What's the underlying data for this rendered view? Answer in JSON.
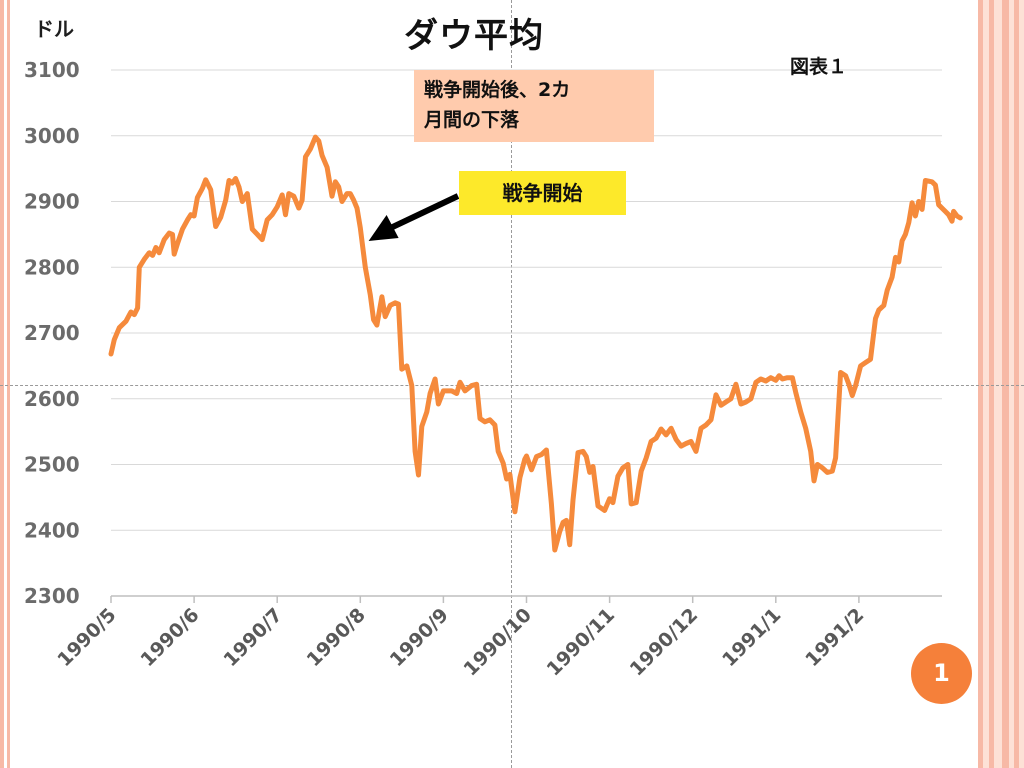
{
  "title": "ダウ平均",
  "unit_label": "ドル",
  "figure_label": "図表１",
  "annotations": {
    "note_line1": "戦争開始後、2カ",
    "note_line2": "月間の下落",
    "war_start": "戦争開始"
  },
  "page_number": "1",
  "colors": {
    "line": "#f58a3c",
    "note_box": "#ffcbad",
    "start_box": "#fde92a",
    "badge": "#f5803a",
    "accent_stripe": "#f7b9a6"
  },
  "chart_data": {
    "type": "line",
    "title": "ダウ平均",
    "ylabel": "ドル",
    "xlabel": "",
    "ylim": [
      2300,
      3100
    ],
    "xlim": [
      0,
      10
    ],
    "yticks": [
      "2300",
      "2400",
      "2500",
      "2600",
      "2700",
      "2800",
      "2900",
      "3000",
      "3100"
    ],
    "xticks": [
      "1990/5",
      "1990/6",
      "1990/7",
      "1990/8",
      "1990/9",
      "1990/10",
      "1990/11",
      "1990/12",
      "1991/1",
      "1991/2"
    ],
    "grid": "horizontal",
    "annotation_arrow": {
      "label": "戦争開始",
      "x": 3.1,
      "y": 2840
    },
    "series": [
      {
        "points": [
          [
            0.0,
            2668
          ],
          [
            0.04,
            2690
          ],
          [
            0.1,
            2708
          ],
          [
            0.18,
            2718
          ],
          [
            0.24,
            2732
          ],
          [
            0.28,
            2728
          ],
          [
            0.32,
            2738
          ],
          [
            0.34,
            2800
          ],
          [
            0.4,
            2812
          ],
          [
            0.46,
            2822
          ],
          [
            0.5,
            2818
          ],
          [
            0.54,
            2830
          ],
          [
            0.58,
            2822
          ],
          [
            0.64,
            2842
          ],
          [
            0.7,
            2852
          ],
          [
            0.74,
            2850
          ],
          [
            0.76,
            2820
          ],
          [
            0.8,
            2836
          ],
          [
            0.86,
            2858
          ],
          [
            0.92,
            2872
          ],
          [
            0.96,
            2880
          ],
          [
            1.0,
            2878
          ],
          [
            1.04,
            2906
          ],
          [
            1.1,
            2920
          ],
          [
            1.14,
            2933
          ],
          [
            1.2,
            2918
          ],
          [
            1.26,
            2862
          ],
          [
            1.32,
            2876
          ],
          [
            1.38,
            2902
          ],
          [
            1.42,
            2932
          ],
          [
            1.46,
            2928
          ],
          [
            1.5,
            2935
          ],
          [
            1.54,
            2922
          ],
          [
            1.58,
            2900
          ],
          [
            1.64,
            2912
          ],
          [
            1.7,
            2858
          ],
          [
            1.76,
            2850
          ],
          [
            1.82,
            2842
          ],
          [
            1.88,
            2872
          ],
          [
            1.94,
            2880
          ],
          [
            2.0,
            2892
          ],
          [
            2.06,
            2910
          ],
          [
            2.1,
            2880
          ],
          [
            2.14,
            2912
          ],
          [
            2.2,
            2908
          ],
          [
            2.26,
            2890
          ],
          [
            2.3,
            2902
          ],
          [
            2.34,
            2968
          ],
          [
            2.4,
            2980
          ],
          [
            2.46,
            2998
          ],
          [
            2.5,
            2992
          ],
          [
            2.54,
            2970
          ],
          [
            2.6,
            2952
          ],
          [
            2.66,
            2908
          ],
          [
            2.7,
            2930
          ],
          [
            2.74,
            2922
          ],
          [
            2.78,
            2900
          ],
          [
            2.84,
            2912
          ],
          [
            2.88,
            2912
          ],
          [
            2.92,
            2902
          ],
          [
            2.96,
            2890
          ],
          [
            3.0,
            2860
          ],
          [
            3.06,
            2800
          ],
          [
            3.12,
            2758
          ],
          [
            3.16,
            2720
          ],
          [
            3.2,
            2712
          ],
          [
            3.26,
            2755
          ],
          [
            3.3,
            2725
          ],
          [
            3.36,
            2742
          ],
          [
            3.42,
            2746
          ],
          [
            3.46,
            2744
          ],
          [
            3.5,
            2645
          ],
          [
            3.56,
            2650
          ],
          [
            3.62,
            2620
          ],
          [
            3.66,
            2520
          ],
          [
            3.7,
            2484
          ],
          [
            3.74,
            2558
          ],
          [
            3.8,
            2580
          ],
          [
            3.84,
            2608
          ],
          [
            3.9,
            2630
          ],
          [
            3.94,
            2592
          ],
          [
            4.0,
            2612
          ],
          [
            4.1,
            2612
          ],
          [
            4.16,
            2608
          ],
          [
            4.2,
            2625
          ],
          [
            4.26,
            2612
          ],
          [
            4.34,
            2620
          ],
          [
            4.4,
            2622
          ],
          [
            4.44,
            2570
          ],
          [
            4.5,
            2565
          ],
          [
            4.56,
            2568
          ],
          [
            4.62,
            2560
          ],
          [
            4.66,
            2520
          ],
          [
            4.72,
            2502
          ],
          [
            4.76,
            2478
          ],
          [
            4.8,
            2485
          ],
          [
            4.86,
            2428
          ],
          [
            4.92,
            2480
          ],
          [
            4.98,
            2508
          ],
          [
            5.0,
            2513
          ],
          [
            5.06,
            2492
          ],
          [
            5.12,
            2512
          ],
          [
            5.18,
            2515
          ],
          [
            5.24,
            2522
          ],
          [
            5.3,
            2440
          ],
          [
            5.34,
            2370
          ],
          [
            5.4,
            2398
          ],
          [
            5.44,
            2412
          ],
          [
            5.48,
            2415
          ],
          [
            5.52,
            2378
          ],
          [
            5.56,
            2446
          ],
          [
            5.62,
            2518
          ],
          [
            5.68,
            2520
          ],
          [
            5.72,
            2512
          ],
          [
            5.76,
            2488
          ],
          [
            5.8,
            2497
          ],
          [
            5.86,
            2437
          ],
          [
            5.94,
            2430
          ],
          [
            6.0,
            2448
          ],
          [
            6.04,
            2442
          ],
          [
            6.1,
            2482
          ],
          [
            6.16,
            2495
          ],
          [
            6.22,
            2500
          ],
          [
            6.26,
            2440
          ],
          [
            6.32,
            2442
          ],
          [
            6.38,
            2490
          ],
          [
            6.44,
            2510
          ],
          [
            6.5,
            2535
          ],
          [
            6.56,
            2540
          ],
          [
            6.62,
            2554
          ],
          [
            6.68,
            2545
          ],
          [
            6.74,
            2555
          ],
          [
            6.8,
            2538
          ],
          [
            6.86,
            2528
          ],
          [
            6.92,
            2532
          ],
          [
            6.98,
            2535
          ],
          [
            7.04,
            2520
          ],
          [
            7.1,
            2555
          ],
          [
            7.16,
            2560
          ],
          [
            7.22,
            2568
          ],
          [
            7.28,
            2606
          ],
          [
            7.34,
            2590
          ],
          [
            7.4,
            2595
          ],
          [
            7.46,
            2600
          ],
          [
            7.52,
            2622
          ],
          [
            7.58,
            2592
          ],
          [
            7.64,
            2595
          ],
          [
            7.7,
            2600
          ],
          [
            7.76,
            2625
          ],
          [
            7.82,
            2630
          ],
          [
            7.88,
            2627
          ],
          [
            7.94,
            2632
          ],
          [
            8.0,
            2628
          ],
          [
            8.04,
            2635
          ],
          [
            8.08,
            2630
          ],
          [
            8.14,
            2632
          ],
          [
            8.2,
            2632
          ],
          [
            8.24,
            2610
          ],
          [
            8.3,
            2580
          ],
          [
            8.36,
            2555
          ],
          [
            8.42,
            2520
          ],
          [
            8.46,
            2475
          ],
          [
            8.5,
            2500
          ],
          [
            8.56,
            2495
          ],
          [
            8.62,
            2488
          ],
          [
            8.68,
            2490
          ],
          [
            8.72,
            2510
          ],
          [
            8.78,
            2640
          ],
          [
            8.84,
            2635
          ],
          [
            8.88,
            2622
          ],
          [
            8.92,
            2605
          ],
          [
            8.96,
            2620
          ],
          [
            9.02,
            2650
          ],
          [
            9.08,
            2655
          ],
          [
            9.14,
            2660
          ],
          [
            9.2,
            2722
          ],
          [
            9.24,
            2735
          ],
          [
            9.3,
            2742
          ],
          [
            9.34,
            2765
          ],
          [
            9.4,
            2785
          ],
          [
            9.44,
            2815
          ],
          [
            9.48,
            2808
          ],
          [
            9.52,
            2840
          ],
          [
            9.56,
            2850
          ],
          [
            9.6,
            2868
          ],
          [
            9.64,
            2898
          ],
          [
            9.68,
            2878
          ],
          [
            9.72,
            2900
          ],
          [
            9.76,
            2888
          ],
          [
            9.8,
            2932
          ],
          [
            9.88,
            2930
          ],
          [
            9.92,
            2925
          ],
          [
            9.96,
            2895
          ],
          [
            10.0,
            2890
          ],
          [
            10.04,
            2885
          ],
          [
            10.08,
            2880
          ],
          [
            10.12,
            2870
          ],
          [
            10.14,
            2885
          ],
          [
            10.18,
            2878
          ],
          [
            10.22,
            2875
          ]
        ]
      }
    ]
  }
}
